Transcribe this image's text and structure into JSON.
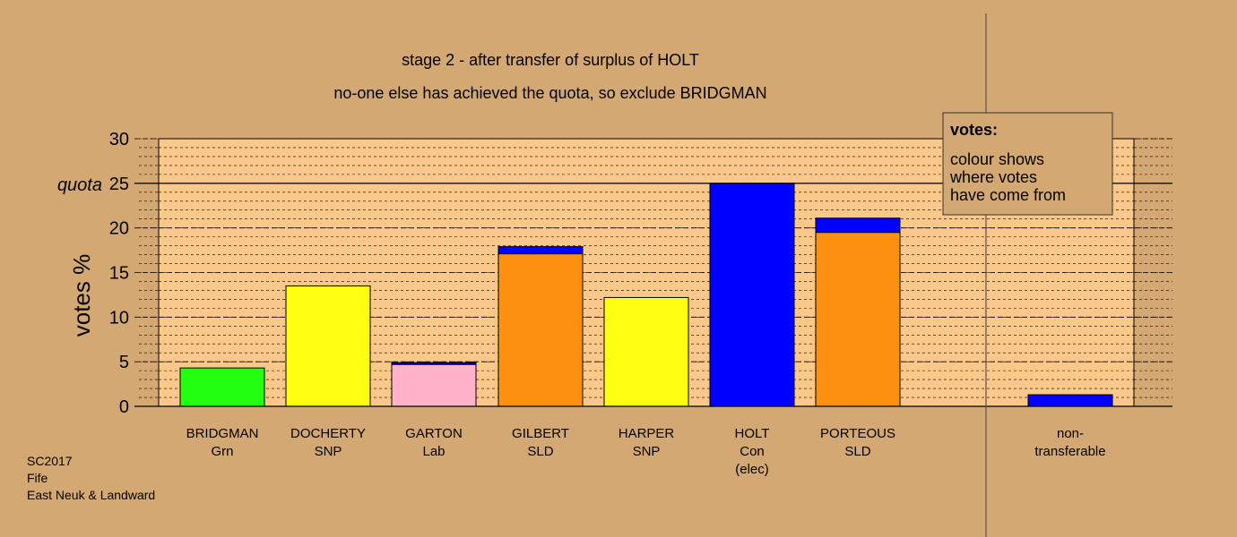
{
  "colors": {
    "background": "#D4A872",
    "plot_area": "#F9C88A",
    "green": "#22FF11",
    "yellow": "#FFFF11",
    "pink": "#FFB2C8",
    "orange": "#FF9111",
    "blue": "#0000FF"
  },
  "chart_data": {
    "type": "bar",
    "stacked": true,
    "title": "stage 2 - after transfer of surplus of HOLT",
    "subtitle": "no-one else has achieved the quota, so exclude BRIDGMAN",
    "ylabel": "votes %",
    "ylim": [
      0,
      30
    ],
    "yticks": [
      0,
      5,
      10,
      15,
      20,
      25,
      30
    ],
    "quota": {
      "label": "quota",
      "value": 25
    },
    "grid": "dashed horizontal lines every 1",
    "categories": [
      {
        "name": "BRIDGMAN",
        "line2": "Grn",
        "line3": ""
      },
      {
        "name": "DOCHERTY",
        "line2": "SNP",
        "line3": ""
      },
      {
        "name": "GARTON",
        "line2": "Lab",
        "line3": ""
      },
      {
        "name": "GILBERT",
        "line2": "SLD",
        "line3": ""
      },
      {
        "name": "HARPER",
        "line2": "SNP",
        "line3": ""
      },
      {
        "name": "HOLT",
        "line2": "Con",
        "line3": "(elec)"
      },
      {
        "name": "PORTEOUS",
        "line2": "SLD",
        "line3": ""
      }
    ],
    "bars": [
      {
        "segments": [
          {
            "value": 4.3,
            "color": "#22FF11"
          }
        ]
      },
      {
        "segments": [
          {
            "value": 13.5,
            "color": "#FFFF11"
          }
        ]
      },
      {
        "segments": [
          {
            "value": 4.7,
            "color": "#FFB2C8"
          },
          {
            "value": 0.2,
            "color": "#0000FF"
          }
        ]
      },
      {
        "segments": [
          {
            "value": 17.1,
            "color": "#FF9111"
          },
          {
            "value": 0.8,
            "color": "#0000FF"
          }
        ]
      },
      {
        "segments": [
          {
            "value": 12.2,
            "color": "#FFFF11"
          }
        ]
      },
      {
        "segments": [
          {
            "value": 25.0,
            "color": "#0000FF"
          }
        ]
      },
      {
        "segments": [
          {
            "value": 19.5,
            "color": "#FF9111"
          },
          {
            "value": 1.6,
            "color": "#0000FF"
          }
        ]
      }
    ],
    "non_transferable": {
      "line1": "non-",
      "line2": "transferable",
      "value": 1.3,
      "color": "#0000FF"
    },
    "legend": {
      "position": "top-right",
      "heading": "votes:",
      "lines": [
        "colour shows",
        "where votes",
        "have come from"
      ]
    },
    "footer": [
      "SC2017",
      "Fife",
      "East Neuk & Landward"
    ]
  }
}
